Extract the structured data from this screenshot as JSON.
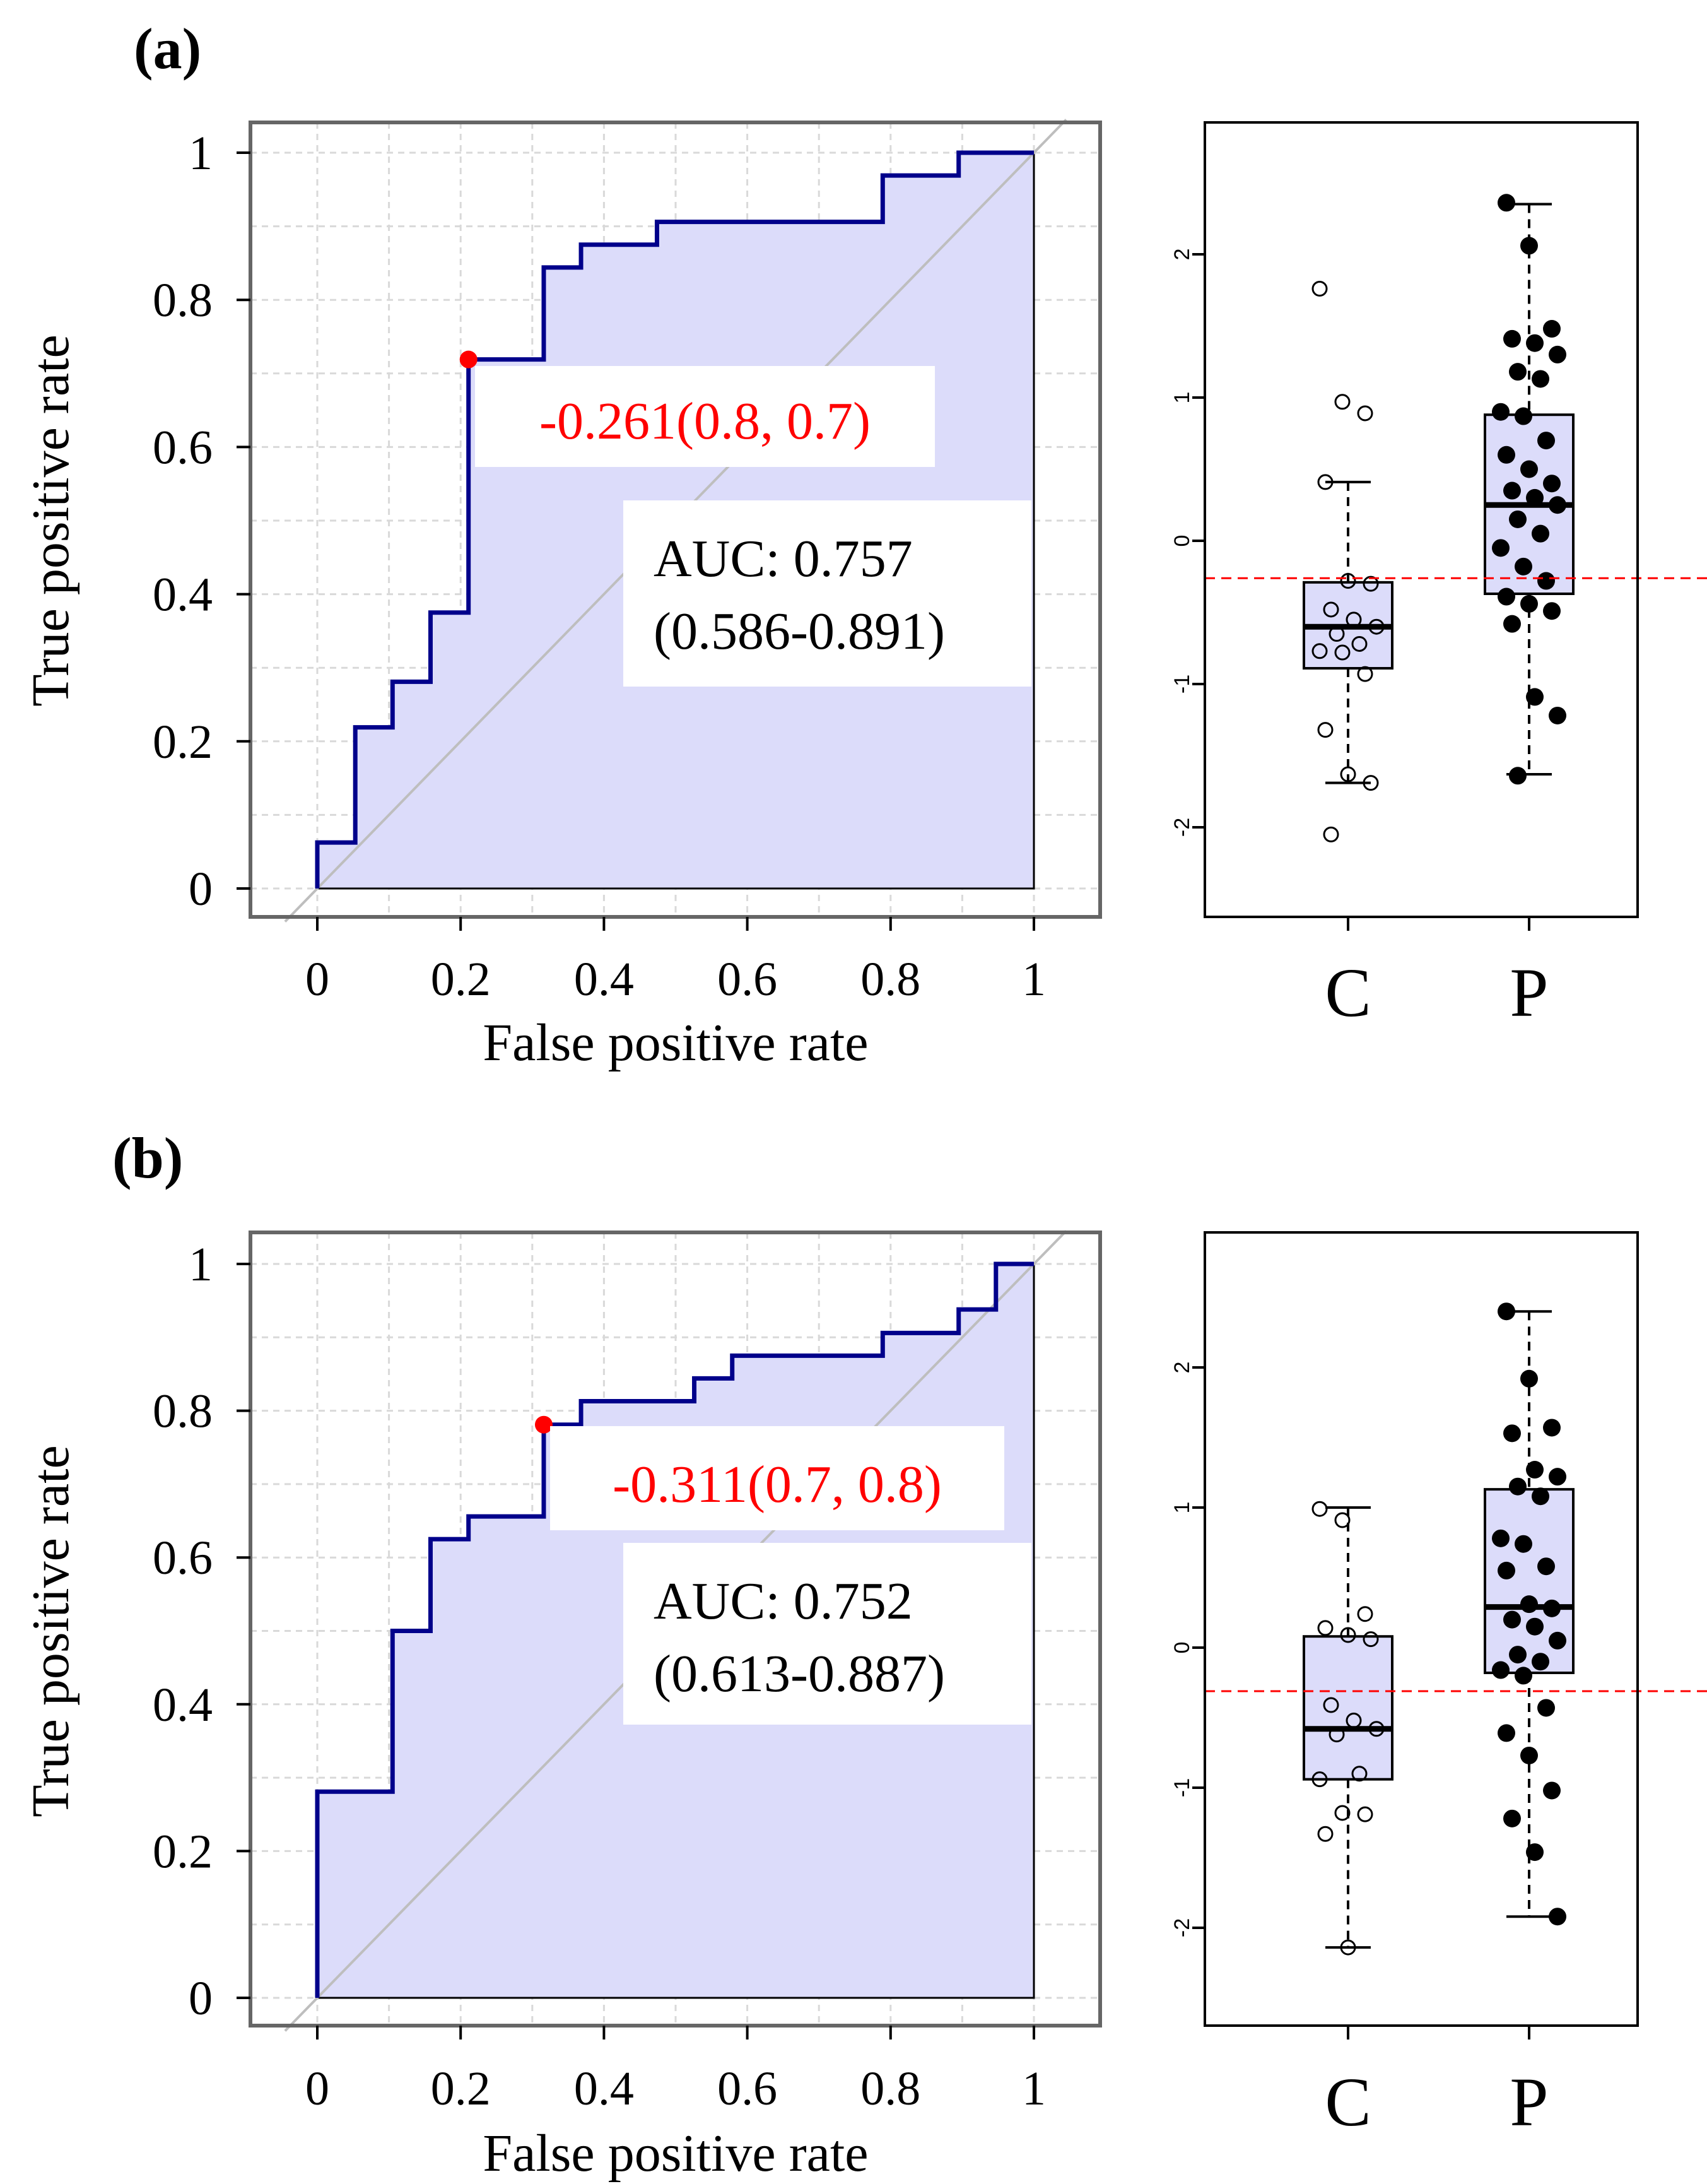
{
  "panel_labels": [
    "(a)",
    "(b)"
  ],
  "colors": {
    "roc_line": "#00008B",
    "auc_fill": "#DCDCFA",
    "box_fill": "#DCDCFA",
    "diagonal": "#BEBEBE",
    "grid": "#D9D9D9",
    "cutoff": "#FF0000",
    "text": "#000000"
  },
  "chart_data": [
    {
      "type": "line",
      "panel": "(a)",
      "xlabel": "False positive rate",
      "ylabel": "True positive rate",
      "xlim": [
        0,
        1
      ],
      "ylim": [
        0,
        1
      ],
      "xticks": [
        "0",
        "0.2",
        "0.4",
        "0.6",
        "0.8",
        "1"
      ],
      "yticks": [
        "0",
        "0.2",
        "0.4",
        "0.6",
        "0.8",
        "1"
      ],
      "grid": true,
      "diagonal": true,
      "roc_fpr": [
        0,
        0,
        0.053,
        0.053,
        0.105,
        0.105,
        0.158,
        0.158,
        0.211,
        0.211,
        0.316,
        0.316,
        0.368,
        0.368,
        0.474,
        0.474,
        0.789,
        0.789,
        0.895,
        0.895,
        1,
        1
      ],
      "roc_tpr": [
        0,
        0.0625,
        0.0625,
        0.219,
        0.219,
        0.281,
        0.281,
        0.375,
        0.375,
        0.719,
        0.719,
        0.844,
        0.844,
        0.875,
        0.875,
        0.906,
        0.906,
        0.969,
        0.969,
        1,
        1,
        0
      ],
      "cutoff_point": {
        "fpr": 0.211,
        "tpr": 0.719
      },
      "cutoff_label": "-0.261(0.8, 0.7)",
      "auc_line1": "AUC: 0.757",
      "auc_line2": "(0.586-0.891)"
    },
    {
      "type": "box",
      "panel": "(a)",
      "categories": [
        "C",
        "P"
      ],
      "ylim": [
        -2.5,
        2.8
      ],
      "yticks": [
        "-2",
        "-1",
        "0",
        "1",
        "2"
      ],
      "cutoff": -0.261,
      "boxes": [
        {
          "whisker_low": -1.69,
          "q1": -0.89,
          "median": -0.6,
          "q3": -0.29,
          "whisker_high": 0.41
        },
        {
          "whisker_low": -1.63,
          "q1": -0.37,
          "median": 0.25,
          "q3": 0.88,
          "whisker_high": 2.35
        }
      ],
      "points_C": [
        1.76,
        0.97,
        0.89,
        0.41,
        -0.28,
        -0.3,
        -0.48,
        -0.55,
        -0.6,
        -0.65,
        -0.72,
        -0.77,
        -0.78,
        -0.93,
        -1.32,
        -1.63,
        -1.69,
        -2.05
      ],
      "points_P": [
        2.36,
        2.06,
        1.48,
        1.41,
        1.38,
        1.3,
        1.18,
        1.13,
        0.9,
        0.87,
        0.7,
        0.6,
        0.5,
        0.4,
        0.35,
        0.3,
        0.25,
        0.15,
        0.05,
        -0.05,
        -0.18,
        -0.28,
        -0.39,
        -0.44,
        -0.49,
        -0.58,
        -1.09,
        -1.22,
        -1.64
      ]
    },
    {
      "type": "line",
      "panel": "(b)",
      "xlabel": "False positive rate",
      "ylabel": "True positive rate",
      "xlim": [
        0,
        1
      ],
      "ylim": [
        0,
        1
      ],
      "xticks": [
        "0",
        "0.2",
        "0.4",
        "0.6",
        "0.8",
        "1"
      ],
      "yticks": [
        "0",
        "0.2",
        "0.4",
        "0.6",
        "0.8",
        "1"
      ],
      "grid": true,
      "diagonal": true,
      "roc_fpr": [
        0,
        0,
        0.105,
        0.105,
        0.158,
        0.158,
        0.211,
        0.211,
        0.316,
        0.316,
        0.368,
        0.368,
        0.526,
        0.526,
        0.579,
        0.579,
        0.789,
        0.789,
        0.895,
        0.895,
        0.947,
        0.947,
        1,
        1
      ],
      "roc_tpr": [
        0,
        0.281,
        0.281,
        0.5,
        0.5,
        0.625,
        0.625,
        0.656,
        0.656,
        0.781,
        0.781,
        0.813,
        0.813,
        0.844,
        0.844,
        0.875,
        0.875,
        0.906,
        0.906,
        0.938,
        0.938,
        1,
        1,
        0
      ],
      "cutoff_point": {
        "fpr": 0.316,
        "tpr": 0.781
      },
      "cutoff_label": "-0.311(0.7, 0.8)",
      "auc_line1": "AUC: 0.752",
      "auc_line2": "(0.613-0.887)"
    },
    {
      "type": "box",
      "panel": "(b)",
      "categories": [
        "C",
        "P"
      ],
      "ylim": [
        -2.6,
        2.95
      ],
      "yticks": [
        "-2",
        "-1",
        "0",
        "1",
        "2"
      ],
      "cutoff": -0.311,
      "boxes": [
        {
          "whisker_low": -2.14,
          "q1": -0.94,
          "median": -0.58,
          "q3": 0.08,
          "whisker_high": 1.0
        },
        {
          "whisker_low": -1.92,
          "q1": -0.18,
          "median": 0.29,
          "q3": 1.13,
          "whisker_high": 2.4
        }
      ],
      "points_C": [
        0.99,
        0.91,
        0.24,
        0.14,
        0.09,
        0.06,
        -0.41,
        -0.52,
        -0.58,
        -0.62,
        -0.9,
        -0.94,
        -1.18,
        -1.19,
        -1.33,
        -2.14
      ],
      "points_P": [
        2.4,
        1.92,
        1.57,
        1.53,
        1.27,
        1.22,
        1.15,
        1.08,
        0.78,
        0.74,
        0.58,
        0.55,
        0.31,
        0.28,
        0.2,
        0.15,
        0.05,
        -0.05,
        -0.1,
        -0.16,
        -0.2,
        -0.43,
        -0.61,
        -0.77,
        -1.02,
        -1.22,
        -1.46,
        -1.92
      ]
    }
  ]
}
